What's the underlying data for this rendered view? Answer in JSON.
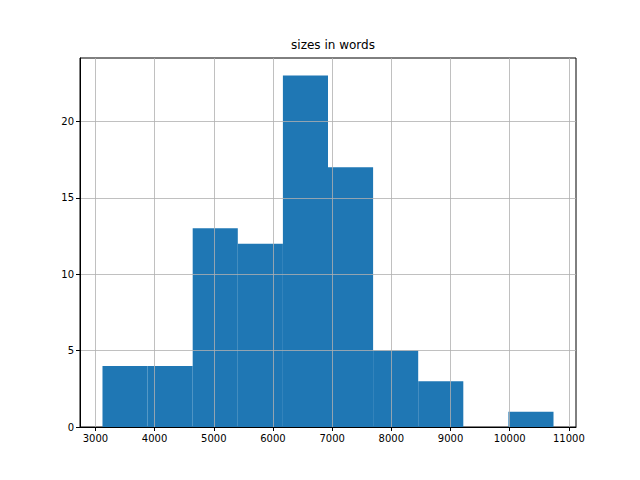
{
  "chart_data": {
    "type": "histogram",
    "title": "sizes in words",
    "bins": [
      3120,
      3882,
      4644,
      5406,
      6168,
      6930,
      7692,
      8454,
      9216,
      9978,
      10740
    ],
    "values": [
      4,
      4,
      13,
      12,
      23,
      17,
      5,
      3,
      0,
      1
    ],
    "color": "#1f77b4",
    "xlim": [
      2740,
      11120
    ],
    "xticks": [
      3000,
      4000,
      5000,
      6000,
      7000,
      8000,
      9000,
      10000,
      11000
    ],
    "ylim": [
      0,
      24.15
    ],
    "yticks": [
      0,
      5,
      10,
      15,
      20
    ],
    "grid": true
  }
}
